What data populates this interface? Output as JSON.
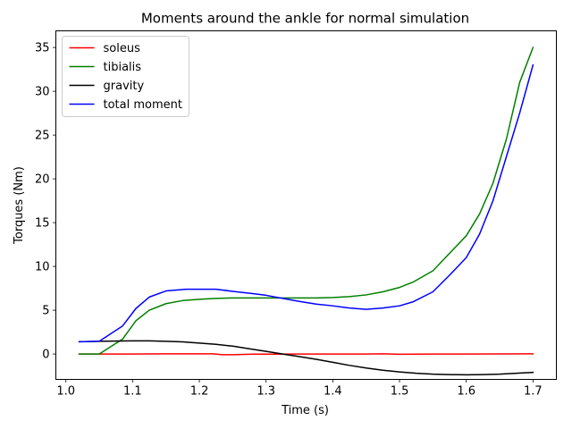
{
  "chart_data": {
    "type": "line",
    "title": "Moments around the ankle for normal simulation",
    "xlabel": "Time (s)",
    "ylabel": "Torques (Nm)",
    "xlim": [
      0.985,
      1.735
    ],
    "ylim": [
      -2.9,
      36.9
    ],
    "xticks": [
      1.0,
      1.1,
      1.2,
      1.3,
      1.4,
      1.5,
      1.6,
      1.7
    ],
    "xtick_labels": [
      "1.0",
      "1.1",
      "1.2",
      "1.3",
      "1.4",
      "1.5",
      "1.6",
      "1.7"
    ],
    "yticks": [
      0,
      5,
      10,
      15,
      20,
      25,
      30,
      35
    ],
    "ytick_labels": [
      "0",
      "5",
      "10",
      "15",
      "20",
      "25",
      "30",
      "35"
    ],
    "grid": false,
    "legend_position": "top-left",
    "series": [
      {
        "name": "soleus",
        "color": "#ff0000",
        "x": [
          1.02,
          1.05,
          1.1,
          1.15,
          1.2,
          1.22,
          1.235,
          1.25,
          1.28,
          1.3,
          1.35,
          1.4,
          1.45,
          1.475,
          1.5,
          1.55,
          1.6,
          1.65,
          1.7
        ],
        "y": [
          0.0,
          0.0,
          0.0,
          0.02,
          0.02,
          0.02,
          -0.08,
          -0.08,
          -0.02,
          -0.02,
          0.0,
          0.0,
          0.0,
          0.02,
          -0.03,
          0.0,
          0.0,
          0.01,
          0.02
        ]
      },
      {
        "name": "tibialis",
        "color": "#008000",
        "x": [
          1.02,
          1.05,
          1.085,
          1.105,
          1.125,
          1.15,
          1.175,
          1.2,
          1.225,
          1.25,
          1.3,
          1.35,
          1.375,
          1.4,
          1.425,
          1.45,
          1.475,
          1.5,
          1.52,
          1.55,
          1.575,
          1.6,
          1.62,
          1.64,
          1.66,
          1.68,
          1.7
        ],
        "y": [
          0.0,
          0.0,
          1.7,
          3.8,
          5.0,
          5.75,
          6.1,
          6.25,
          6.35,
          6.4,
          6.4,
          6.4,
          6.4,
          6.45,
          6.55,
          6.75,
          7.1,
          7.6,
          8.2,
          9.5,
          11.5,
          13.5,
          16.0,
          19.5,
          24.5,
          31.0,
          35.0
        ]
      },
      {
        "name": "gravity",
        "color": "#000000",
        "x": [
          1.02,
          1.05,
          1.1,
          1.125,
          1.15,
          1.175,
          1.2,
          1.225,
          1.25,
          1.275,
          1.3,
          1.325,
          1.35,
          1.375,
          1.4,
          1.425,
          1.45,
          1.475,
          1.5,
          1.525,
          1.55,
          1.575,
          1.6,
          1.625,
          1.65,
          1.675,
          1.7
        ],
        "y": [
          1.4,
          1.45,
          1.5,
          1.5,
          1.45,
          1.38,
          1.25,
          1.1,
          0.9,
          0.6,
          0.3,
          0.0,
          -0.3,
          -0.6,
          -0.95,
          -1.3,
          -1.6,
          -1.85,
          -2.05,
          -2.2,
          -2.3,
          -2.35,
          -2.38,
          -2.35,
          -2.3,
          -2.2,
          -2.1
        ]
      },
      {
        "name": "total moment",
        "color": "#0000ff",
        "x": [
          1.02,
          1.05,
          1.085,
          1.105,
          1.125,
          1.15,
          1.18,
          1.2,
          1.225,
          1.25,
          1.28,
          1.3,
          1.325,
          1.35,
          1.375,
          1.4,
          1.425,
          1.45,
          1.475,
          1.5,
          1.52,
          1.55,
          1.575,
          1.6,
          1.62,
          1.64,
          1.66,
          1.68,
          1.7
        ],
        "y": [
          1.4,
          1.45,
          3.2,
          5.2,
          6.5,
          7.2,
          7.4,
          7.4,
          7.4,
          7.15,
          6.9,
          6.7,
          6.35,
          6.0,
          5.7,
          5.5,
          5.25,
          5.1,
          5.25,
          5.5,
          5.95,
          7.1,
          9.0,
          11.0,
          13.7,
          17.5,
          22.5,
          27.5,
          33.0
        ]
      }
    ]
  }
}
